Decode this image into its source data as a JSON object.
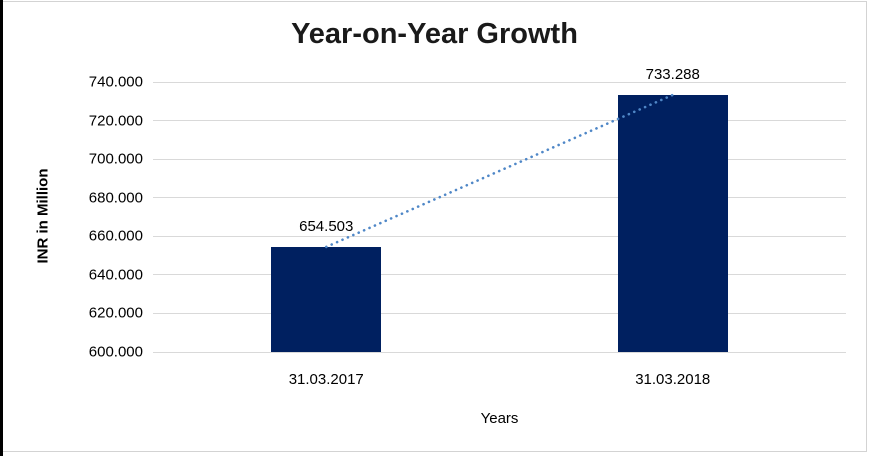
{
  "window": {
    "background_color": "#ffffff",
    "border_color": "#d3d3d3",
    "left_strip_color": "#000000"
  },
  "chart_data": {
    "type": "bar",
    "title": "Year-on-Year Growth",
    "xlabel": "Years",
    "ylabel": "INR in Million",
    "categories": [
      "31.03.2017",
      "31.03.2018"
    ],
    "values": [
      654.503,
      733.288
    ],
    "data_labels": [
      "654.503",
      "733.288"
    ],
    "ylim": [
      600,
      740
    ],
    "ytick_step": 20,
    "ytick_labels": [
      "600.000",
      "620.000",
      "640.000",
      "660.000",
      "680.000",
      "700.000",
      "720.000",
      "740.000"
    ],
    "grid": "horizontal",
    "legend_position": "none",
    "trendline": {
      "style": "dotted",
      "color": "#4f87c7",
      "from_value": 654.503,
      "to_value": 733.288
    },
    "colors": {
      "bar": "#002060",
      "gridline": "#d9d9d9",
      "title_text": "#1a1a1a",
      "axis_text": "#000000"
    }
  }
}
